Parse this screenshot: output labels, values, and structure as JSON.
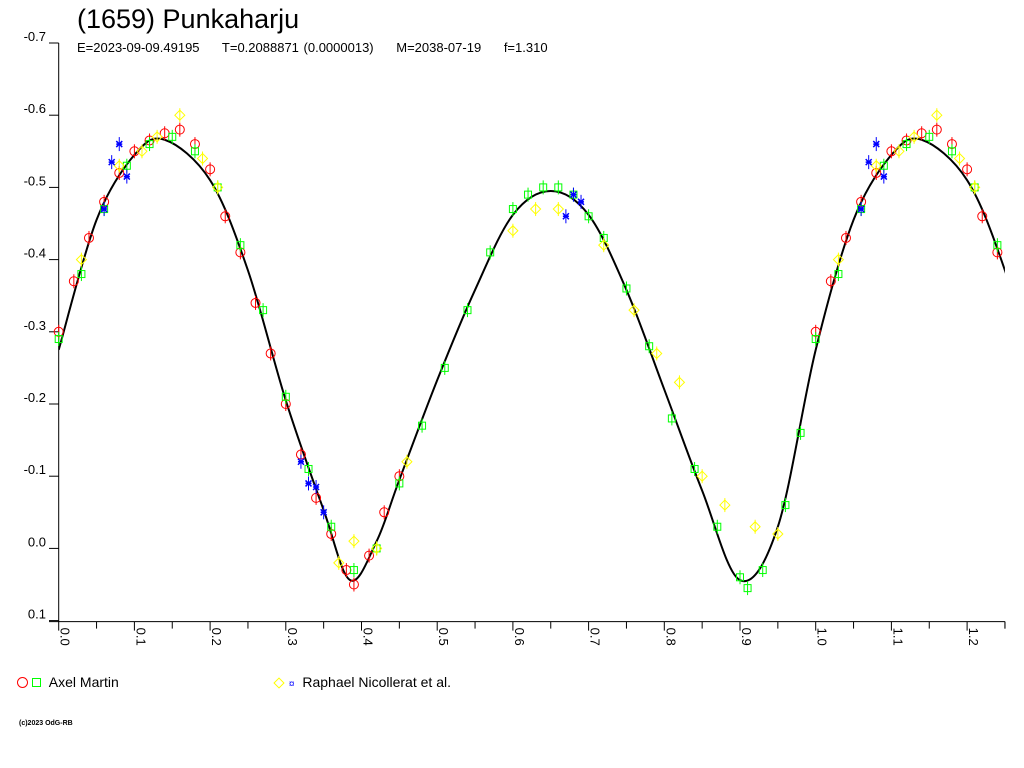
{
  "chart_data": {
    "type": "scatter",
    "title": "(1659) Punkaharju",
    "subtitle": {
      "epoch": "E=2023-09-09.49195",
      "period": "T=0.2088871 (0.0000013)",
      "date": "M=2038-07-19",
      "f": "f=1.310"
    },
    "xlabel": "",
    "ylabel": "",
    "xlim": [
      0,
      1.25
    ],
    "ylim": [
      -0.7,
      0.1
    ],
    "y_inverted": true,
    "grid": false,
    "x_ticks": [
      "0.0",
      "0.1",
      "0.2",
      "0.3",
      "0.4",
      "0.5",
      "0.6",
      "0.7",
      "0.8",
      "0.9",
      "1.0",
      "1.1",
      "1.2"
    ],
    "y_ticks": [
      "-0.7",
      "-0.6",
      "-0.5",
      "-0.4",
      "-0.3",
      "-0.2",
      "-0.1",
      "0.0",
      "0.1"
    ],
    "legend_position": "bottom",
    "fit_curve": {
      "color": "#000000",
      "x": [
        0.0,
        0.05,
        0.1,
        0.14,
        0.2,
        0.25,
        0.3,
        0.35,
        0.385,
        0.42,
        0.45,
        0.5,
        0.55,
        0.6,
        0.65,
        0.7,
        0.75,
        0.8,
        0.85,
        0.9,
        0.95,
        1.0
      ],
      "y": [
        -0.275,
        -0.455,
        -0.545,
        -0.566,
        -0.51,
        -0.385,
        -0.205,
        -0.053,
        0.044,
        -0.01,
        -0.095,
        -0.233,
        -0.358,
        -0.462,
        -0.495,
        -0.462,
        -0.358,
        -0.22,
        -0.08,
        0.044,
        -0.03,
        -0.275
      ]
    },
    "series": [
      {
        "name": "Axel Martin",
        "marker": "circle",
        "color": "#ff0000",
        "x": [
          0.0,
          0.02,
          0.04,
          0.06,
          0.08,
          0.1,
          0.12,
          0.14,
          0.16,
          0.18,
          0.2,
          0.22,
          0.24,
          0.26,
          0.28,
          0.3,
          0.32,
          0.34,
          0.36,
          0.38,
          0.39,
          0.41,
          0.43,
          0.45
        ],
        "y": [
          -0.3,
          -0.37,
          -0.43,
          -0.48,
          -0.52,
          -0.55,
          -0.565,
          -0.575,
          -0.58,
          -0.56,
          -0.525,
          -0.46,
          -0.41,
          -0.34,
          -0.27,
          -0.2,
          -0.13,
          -0.07,
          -0.02,
          0.03,
          0.05,
          0.01,
          -0.05,
          -0.1
        ]
      },
      {
        "name": "Axel Martin",
        "marker": "square",
        "color": "#00ff00",
        "x": [
          0.0,
          0.03,
          0.06,
          0.09,
          0.12,
          0.15,
          0.18,
          0.21,
          0.24,
          0.27,
          0.3,
          0.33,
          0.36,
          0.39,
          0.42,
          0.45,
          0.48,
          0.51,
          0.54,
          0.57,
          0.6,
          0.62,
          0.64,
          0.66,
          0.68,
          0.7,
          0.72,
          0.75,
          0.78,
          0.81,
          0.84,
          0.87,
          0.9,
          0.91,
          0.93,
          0.96,
          0.98
        ],
        "y": [
          -0.29,
          -0.38,
          -0.47,
          -0.53,
          -0.56,
          -0.57,
          -0.55,
          -0.5,
          -0.42,
          -0.33,
          -0.21,
          -0.11,
          -0.03,
          0.03,
          0.0,
          -0.09,
          -0.17,
          -0.25,
          -0.33,
          -0.41,
          -0.47,
          -0.49,
          -0.5,
          -0.5,
          -0.49,
          -0.46,
          -0.43,
          -0.36,
          -0.28,
          -0.18,
          -0.11,
          -0.03,
          0.04,
          0.055,
          0.03,
          -0.06,
          -0.16
        ]
      },
      {
        "name": "Raphael Nicollerat et al.",
        "marker": "diamond",
        "color": "#ffff00",
        "x": [
          0.03,
          0.08,
          0.11,
          0.13,
          0.16,
          0.19,
          0.21,
          0.37,
          0.39,
          0.42,
          0.46,
          0.6,
          0.63,
          0.66,
          0.72,
          0.76,
          0.79,
          0.82,
          0.85,
          0.88,
          0.92,
          0.95
        ],
        "y": [
          -0.4,
          -0.53,
          -0.55,
          -0.57,
          -0.6,
          -0.54,
          -0.5,
          0.02,
          -0.01,
          0.0,
          -0.12,
          -0.44,
          -0.47,
          -0.47,
          -0.42,
          -0.33,
          -0.27,
          -0.23,
          -0.1,
          -0.06,
          -0.03,
          -0.02
        ]
      },
      {
        "name": "Raphael Nicollerat et al.",
        "marker": "star",
        "color": "#0000ff",
        "x": [
          0.06,
          0.07,
          0.08,
          0.09,
          0.32,
          0.33,
          0.34,
          0.35,
          0.67,
          0.68,
          0.69
        ],
        "y": [
          -0.47,
          -0.535,
          -0.56,
          -0.515,
          -0.12,
          -0.09,
          -0.085,
          -0.05,
          -0.46,
          -0.49,
          -0.48
        ]
      }
    ]
  },
  "legend": [
    {
      "label": "Axel Martin"
    },
    {
      "label": "Raphael Nicollerat et al."
    }
  ],
  "copyright": "(c)2023 OdG-RB"
}
